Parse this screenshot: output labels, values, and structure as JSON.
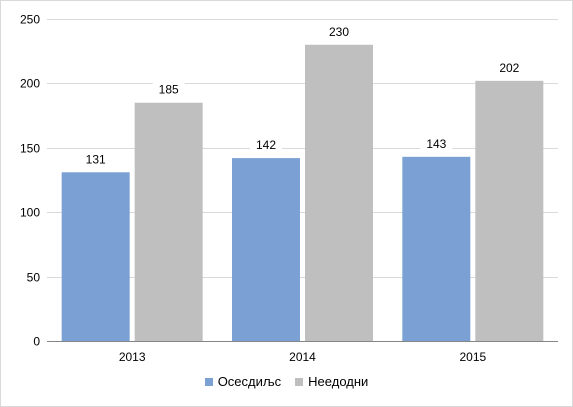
{
  "chart_data": {
    "type": "bar",
    "title": "",
    "xlabel": "",
    "ylabel": "",
    "categories": [
      "2013",
      "2014",
      "2015"
    ],
    "series": [
      {
        "name": "Осесдиљс",
        "values": [
          131,
          142,
          143
        ],
        "color": "#7aa0d4"
      },
      {
        "name": "Неедодни",
        "values": [
          185,
          230,
          202
        ],
        "color": "#bfbfbf"
      }
    ],
    "ylim": [
      0,
      250
    ],
    "yticks": [
      0,
      50,
      100,
      150,
      200,
      250
    ],
    "grid": true,
    "legend_position": "bottom",
    "data_labels": true
  }
}
